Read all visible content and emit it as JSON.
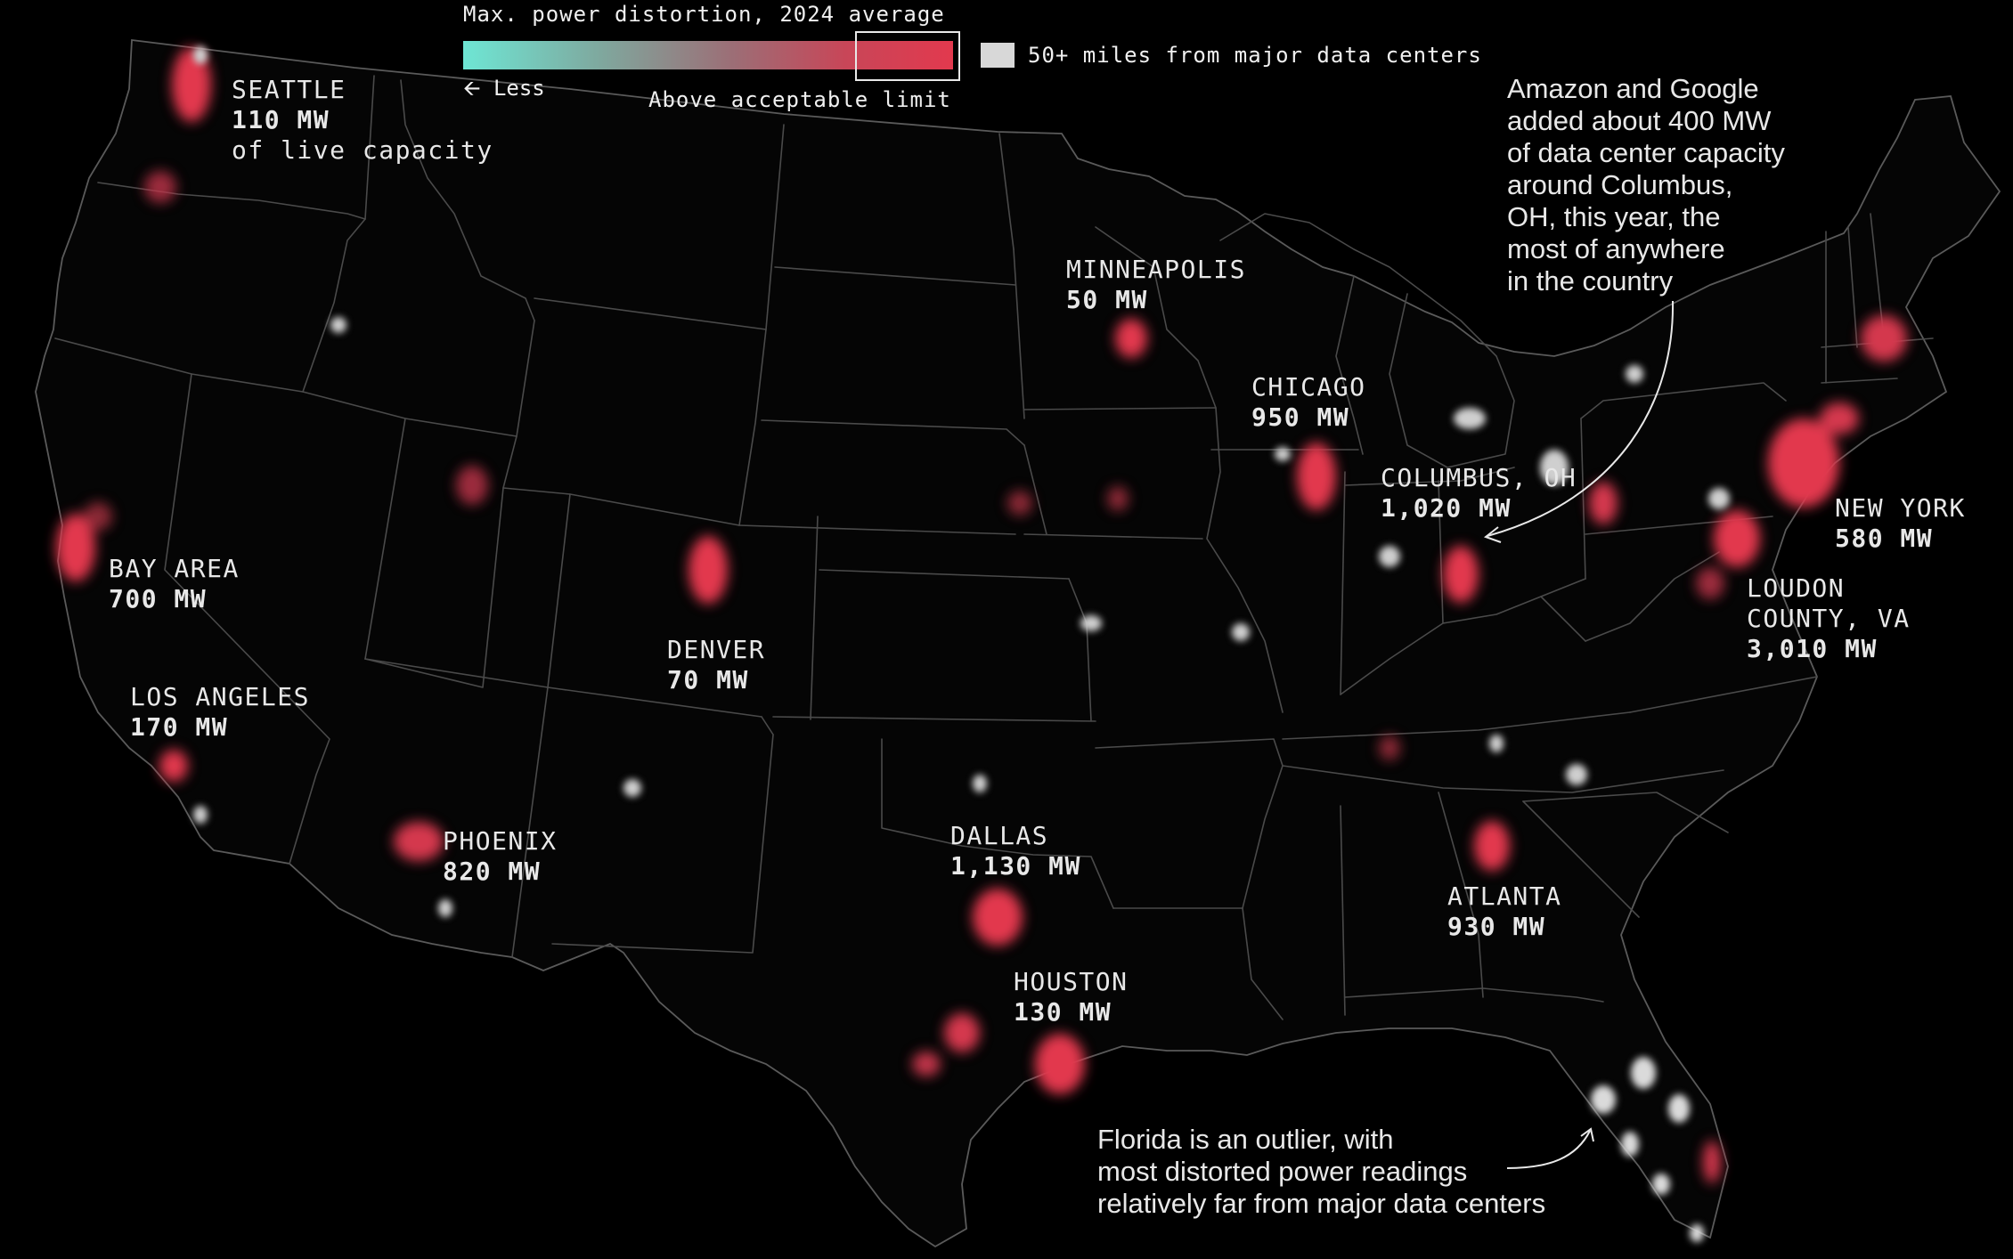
{
  "legend": {
    "title": "Max. power distortion, 2024 average",
    "less_label": "Less",
    "limit_label": "Above acceptable limit",
    "gray_label": "50+ miles from major data centers",
    "colors": {
      "low": "#6ee6d4",
      "high": "#e2394e",
      "far": "#d8d8d8"
    }
  },
  "cities": [
    {
      "id": "seattle",
      "name": "SEATTLE",
      "mw": "110 MW",
      "note": "of live capacity"
    },
    {
      "id": "bay-area",
      "name": "BAY AREA",
      "mw": "700 MW"
    },
    {
      "id": "los-angeles",
      "name": "LOS ANGELES",
      "mw": "170 MW"
    },
    {
      "id": "phoenix",
      "name": "PHOENIX",
      "mw": "820 MW"
    },
    {
      "id": "denver",
      "name": "DENVER",
      "mw": "70 MW"
    },
    {
      "id": "minneapolis",
      "name": "MINNEAPOLIS",
      "mw": "50 MW"
    },
    {
      "id": "chicago",
      "name": "CHICAGO",
      "mw": "950 MW"
    },
    {
      "id": "columbus",
      "name": "COLUMBUS, OH",
      "mw": "1,020 MW"
    },
    {
      "id": "dallas",
      "name": "DALLAS",
      "mw": "1,130 MW"
    },
    {
      "id": "houston",
      "name": "HOUSTON",
      "mw": "130 MW"
    },
    {
      "id": "atlanta",
      "name": "ATLANTA",
      "mw": "930 MW"
    },
    {
      "id": "new-york",
      "name": "NEW YORK",
      "mw": "580 MW"
    },
    {
      "id": "loudon",
      "name": "LOUDON COUNTY, VA",
      "name_line1": "LOUDON",
      "name_line2": "COUNTY, VA",
      "mw": "3,010 MW"
    }
  ],
  "annotations": {
    "columbus": "Amazon and Google added about 400 MW of data center capacity around Columbus, OH, this year, the most of anywhere in the country",
    "columbus_lines": [
      "Amazon and Google",
      "added about 400 MW",
      "of data center capacity",
      "around Columbus,",
      "OH, this year, the",
      "most of anywhere",
      "in the country"
    ],
    "florida": "Florida is an outlier, with most distorted power readings relatively far from major data centers",
    "florida_lines": [
      "Florida is an outlier, with",
      "most distorted power readings",
      "relatively far from major data centers"
    ]
  }
}
